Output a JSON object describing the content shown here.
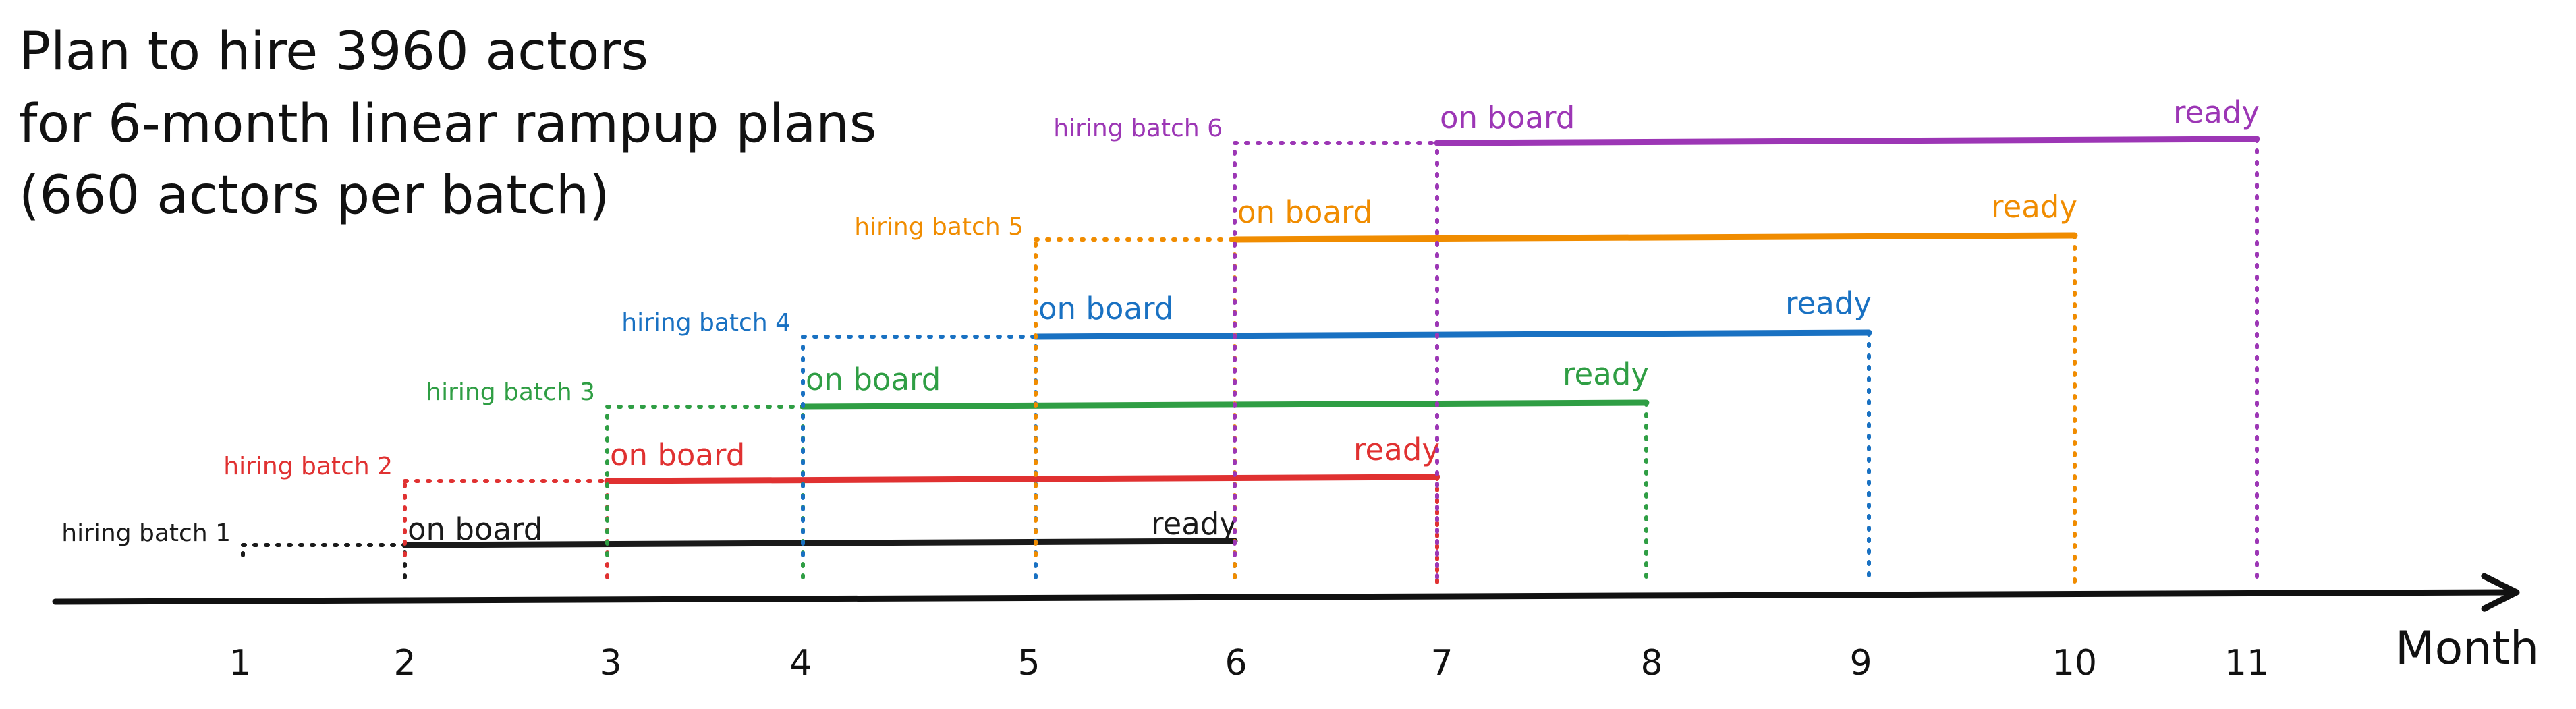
{
  "title": {
    "lines": [
      "Plan to hire 3960 actors",
      "for 6-month linear rampup plans",
      "(660 actors per batch)"
    ]
  },
  "axis": {
    "label": "Month",
    "ticks": [
      "1",
      "2",
      "3",
      "4",
      "5",
      "6",
      "7",
      "8",
      "9",
      "10",
      "11"
    ]
  },
  "batches": [
    {
      "label": "hiring batch 1",
      "hire_month": 1,
      "onboard_month": 2,
      "ready_month": 6,
      "onboard_label": "on board",
      "ready_label": "ready",
      "color": "#1a1a1a"
    },
    {
      "label": "hiring batch 2",
      "hire_month": 2,
      "onboard_month": 3,
      "ready_month": 7,
      "onboard_label": "on board",
      "ready_label": "ready",
      "color": "#e03131"
    },
    {
      "label": "hiring batch 3",
      "hire_month": 3,
      "onboard_month": 4,
      "ready_month": 8,
      "onboard_label": "on board",
      "ready_label": "ready",
      "color": "#2f9e44"
    },
    {
      "label": "hiring batch 4",
      "hire_month": 4,
      "onboard_month": 5,
      "ready_month": 9,
      "onboard_label": "on board",
      "ready_label": "ready",
      "color": "#1971c2"
    },
    {
      "label": "hiring batch 5",
      "hire_month": 5,
      "onboard_month": 6,
      "ready_month": 10,
      "onboard_label": "on board",
      "ready_label": "ready",
      "color": "#f08c00"
    },
    {
      "label": "hiring batch 6",
      "hire_month": 6,
      "onboard_month": 7,
      "ready_month": 11,
      "onboard_label": "on board",
      "ready_label": "ready",
      "color": "#9c36b5"
    }
  ]
}
